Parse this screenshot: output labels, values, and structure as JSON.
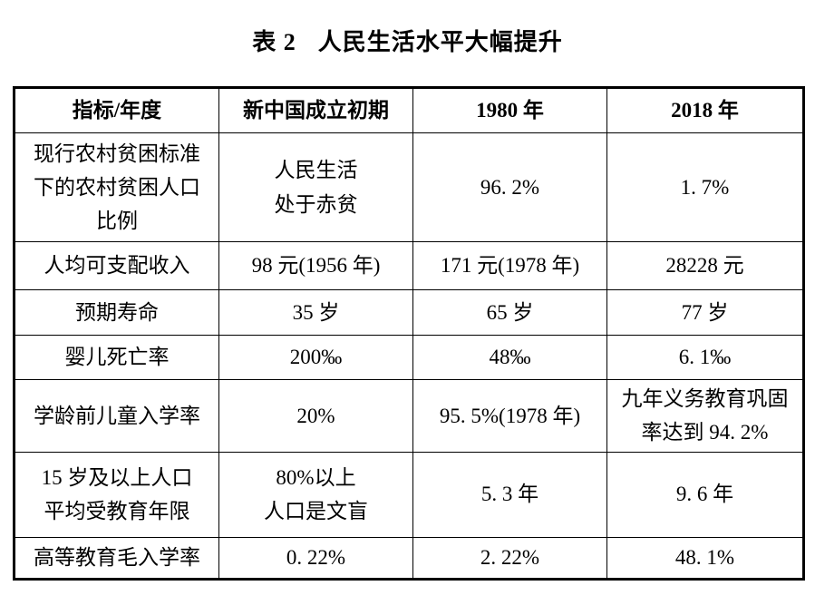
{
  "title": {
    "prefix": "表 2",
    "main": "人民生活水平大幅提升"
  },
  "table": {
    "headers": [
      "指标/年度",
      "新中国成立初期",
      "1980 年",
      "2018 年"
    ],
    "rows": [
      {
        "indicator_lines": [
          "现行农村贫困标准",
          "下的农村贫困人口",
          "比例"
        ],
        "early_lines": [
          "人民生活",
          "处于赤贫"
        ],
        "y1980_lines": [
          "96. 2%"
        ],
        "y2018_lines": [
          "1. 7%"
        ]
      },
      {
        "indicator_lines": [
          "人均可支配收入"
        ],
        "early_lines": [
          "98 元(1956 年)"
        ],
        "y1980_lines": [
          "171 元(1978 年)"
        ],
        "y2018_lines": [
          "28228 元"
        ]
      },
      {
        "indicator_lines": [
          "预期寿命"
        ],
        "early_lines": [
          "35 岁"
        ],
        "y1980_lines": [
          "65 岁"
        ],
        "y2018_lines": [
          "77 岁"
        ]
      },
      {
        "indicator_lines": [
          "婴儿死亡率"
        ],
        "early_lines": [
          "200‰"
        ],
        "y1980_lines": [
          "48‰"
        ],
        "y2018_lines": [
          "6. 1‰"
        ]
      },
      {
        "indicator_lines": [
          "学龄前儿童入学率"
        ],
        "early_lines": [
          "20%"
        ],
        "y1980_lines": [
          "95. 5%(1978 年)"
        ],
        "y2018_lines": [
          "九年义务教育巩固",
          "率达到 94. 2%"
        ]
      },
      {
        "indicator_lines": [
          "15 岁及以上人口",
          "平均受教育年限"
        ],
        "early_lines": [
          "80%以上",
          "人口是文盲"
        ],
        "y1980_lines": [
          "5. 3 年"
        ],
        "y2018_lines": [
          "9. 6 年"
        ]
      },
      {
        "indicator_lines": [
          "高等教育毛入学率"
        ],
        "early_lines": [
          "0. 22%"
        ],
        "y1980_lines": [
          "2. 22%"
        ],
        "y2018_lines": [
          "48. 1%"
        ]
      }
    ]
  },
  "colors": {
    "text": "#000000",
    "border": "#000000",
    "background": "#ffffff"
  }
}
